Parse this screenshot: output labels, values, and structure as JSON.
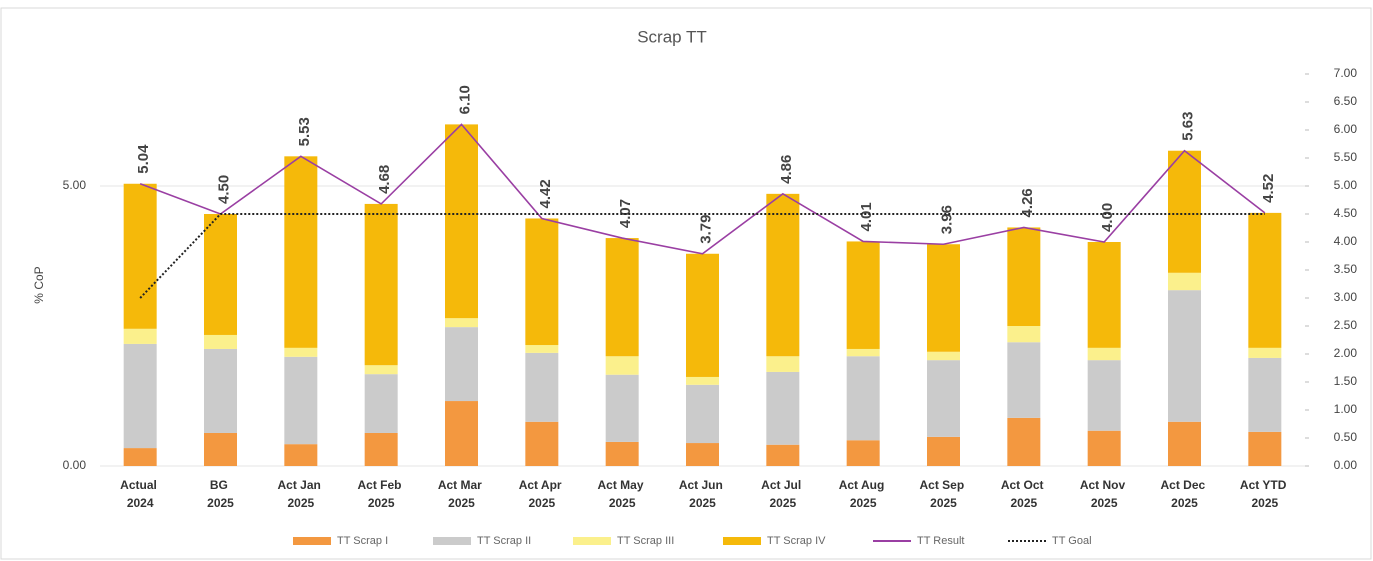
{
  "chart_data": {
    "type": "bar",
    "title": "Scrap TT",
    "y_label": "% CoP",
    "categories": [
      "Actual 2024",
      "BG 2025",
      "Act Jan 2025",
      "Act Feb 2025",
      "Act Mar 2025",
      "Act Apr 2025",
      "Act May 2025",
      "Act Jun 2025",
      "Act Jul 2025",
      "Act Aug 2025",
      "Act Sep 2025",
      "Act Oct 2025",
      "Act Nov 2025",
      "Act Dec 2025",
      "Act YTD 2025"
    ],
    "stacked": true,
    "ylim": [
      0,
      7
    ],
    "yticks": [
      {
        "value": 0,
        "label": "0.00"
      },
      {
        "value": 5,
        "label": "5.00"
      }
    ],
    "y2lim": [
      0,
      7
    ],
    "y2ticks": [
      {
        "value": 0,
        "label": "0.00"
      },
      {
        "value": 0.5,
        "label": "0.50"
      },
      {
        "value": 1,
        "label": "1.00"
      },
      {
        "value": 1.5,
        "label": "1.50"
      },
      {
        "value": 2,
        "label": "2.00"
      },
      {
        "value": 2.5,
        "label": "2.50"
      },
      {
        "value": 3,
        "label": "3.00"
      },
      {
        "value": 3.5,
        "label": "3.50"
      },
      {
        "value": 4,
        "label": "4.00"
      },
      {
        "value": 4.5,
        "label": "4.50"
      },
      {
        "value": 5,
        "label": "5.00"
      },
      {
        "value": 5.5,
        "label": "5.50"
      },
      {
        "value": 6,
        "label": "6.00"
      },
      {
        "value": 6.5,
        "label": "6.50"
      },
      {
        "value": 7,
        "label": "7.00"
      }
    ],
    "legend": "bottom",
    "series": [
      {
        "name": "TT Scrap I",
        "type": "bar",
        "color": "#f39840",
        "values": [
          0.32,
          0.59,
          0.39,
          0.59,
          1.16,
          0.79,
          0.43,
          0.41,
          0.38,
          0.46,
          0.52,
          0.86,
          0.63,
          0.79,
          0.61
        ]
      },
      {
        "name": "TT Scrap II",
        "type": "bar",
        "color": "#cbcbcb",
        "values": [
          1.86,
          1.5,
          1.56,
          1.05,
          1.32,
          1.23,
          1.2,
          1.04,
          1.3,
          1.5,
          1.37,
          1.35,
          1.26,
          2.35,
          1.32
        ]
      },
      {
        "name": "TT Scrap III",
        "type": "bar",
        "color": "#fbf08c",
        "values": [
          0.27,
          0.25,
          0.16,
          0.16,
          0.16,
          0.14,
          0.33,
          0.14,
          0.28,
          0.13,
          0.15,
          0.29,
          0.22,
          0.31,
          0.18
        ]
      },
      {
        "name": "TT Scrap IV",
        "type": "bar",
        "color": "#f5b90a",
        "values": [
          2.59,
          2.16,
          3.42,
          2.88,
          3.46,
          2.26,
          2.11,
          2.2,
          2.9,
          1.92,
          1.92,
          1.76,
          1.89,
          2.18,
          2.41
        ]
      },
      {
        "name": "TT Result",
        "type": "line",
        "color": "#9a3fa3",
        "values": [
          5.04,
          4.5,
          5.53,
          4.68,
          6.1,
          4.42,
          4.07,
          3.79,
          4.86,
          4.01,
          3.96,
          4.26,
          4.0,
          5.63,
          4.52
        ],
        "value_labels": [
          "5.04",
          "4.50",
          "5.53",
          "4.68",
          "6.10",
          "4.42",
          "4.07",
          "3.79",
          "4.86",
          "4.01",
          "3.96",
          "4.26",
          "4.00",
          "5.63",
          "4.52"
        ]
      },
      {
        "name": "TT Goal",
        "type": "line",
        "dashed": true,
        "color": "#222222",
        "values": [
          3.0,
          4.5,
          4.5,
          4.5,
          4.5,
          4.5,
          4.5,
          4.5,
          4.5,
          4.5,
          4.5,
          4.5,
          4.5,
          4.5,
          4.5
        ]
      }
    ]
  }
}
